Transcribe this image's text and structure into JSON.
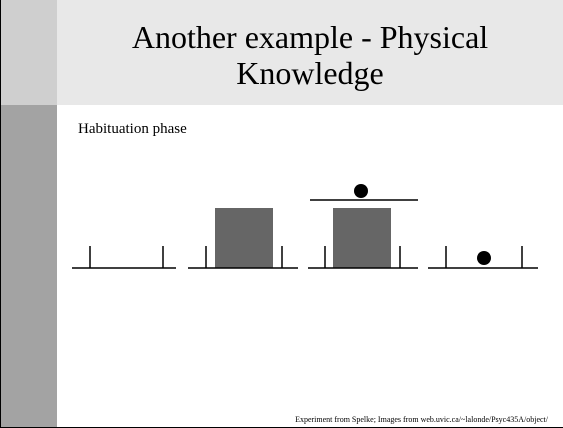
{
  "header": {
    "title_lines": [
      "Another example - Physical",
      "Knowledge"
    ]
  },
  "body": {
    "label": "Habituation phase"
  },
  "footer": {
    "text": "Experiment from Spelke; Images from web.uvic.ca/~lalonde/Psyc435A/object/"
  }
}
